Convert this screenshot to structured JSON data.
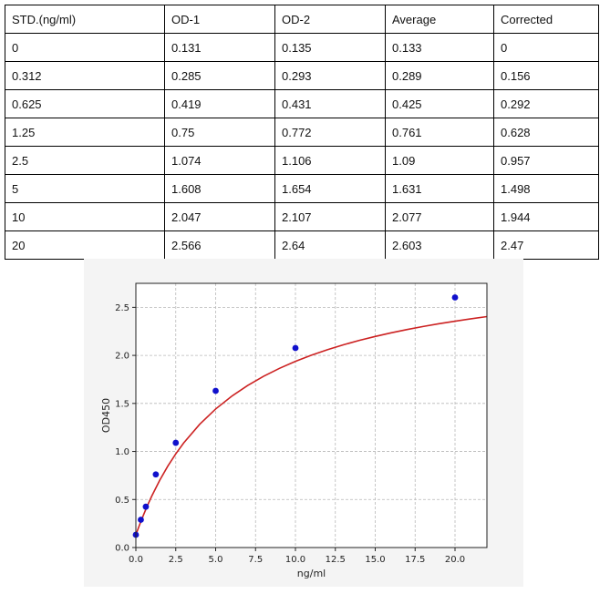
{
  "table": {
    "headers": [
      "STD.(ng/ml)",
      "OD-1",
      "OD-2",
      "Average",
      "Corrected"
    ],
    "rows": [
      [
        "0",
        "0.131",
        "0.135",
        "0.133",
        "0"
      ],
      [
        "0.312",
        "0.285",
        "0.293",
        "0.289",
        "0.156"
      ],
      [
        "0.625",
        "0.419",
        "0.431",
        "0.425",
        "0.292"
      ],
      [
        "1.25",
        "0.75",
        "0.772",
        "0.761",
        "0.628"
      ],
      [
        "2.5",
        "1.074",
        "1.106",
        "1.09",
        "0.957"
      ],
      [
        "5",
        "1.608",
        "1.654",
        "1.631",
        "1.498"
      ],
      [
        "10",
        "2.047",
        "2.107",
        "2.077",
        "1.944"
      ],
      [
        "20",
        "2.566",
        "2.64",
        "2.603",
        "2.47"
      ]
    ]
  },
  "chart_data": {
    "type": "scatter",
    "title": "",
    "xlabel": "ng/ml",
    "ylabel": "OD450",
    "xlim": [
      0,
      22
    ],
    "ylim": [
      0,
      2.75
    ],
    "xticks": [
      0,
      2.5,
      5,
      7.5,
      10,
      12.5,
      15,
      17.5,
      20
    ],
    "xtick_labels": [
      "0.0",
      "2.5",
      "5.0",
      "7.5",
      "10.0",
      "12.5",
      "15.0",
      "17.5",
      "20.0"
    ],
    "yticks": [
      0,
      0.5,
      1,
      1.5,
      2,
      2.5
    ],
    "ytick_labels": [
      "0.0",
      "0.5",
      "1.0",
      "1.5",
      "2.0",
      "2.5"
    ],
    "grid": true,
    "series": [
      {
        "type": "scatter",
        "color": "#1010cc",
        "x": [
          0,
          0.312,
          0.625,
          1.25,
          2.5,
          5,
          10,
          20
        ],
        "y": [
          0.133,
          0.289,
          0.425,
          0.761,
          1.09,
          1.631,
          2.077,
          2.603
        ]
      },
      {
        "type": "line",
        "color": "#cc2222",
        "x": [
          0,
          0.25,
          0.5,
          0.75,
          1,
          1.5,
          2,
          2.5,
          3,
          4,
          5,
          6,
          7,
          8,
          9,
          10,
          11,
          12,
          13,
          14,
          15,
          16,
          17,
          18,
          19,
          20,
          21,
          22
        ],
        "y": [
          0.133,
          0.244,
          0.348,
          0.446,
          0.537,
          0.702,
          0.847,
          0.975,
          1.089,
          1.283,
          1.442,
          1.574,
          1.686,
          1.782,
          1.865,
          1.938,
          2.002,
          2.059,
          2.11,
          2.156,
          2.197,
          2.235,
          2.269,
          2.301,
          2.33,
          2.356,
          2.381,
          2.404
        ]
      }
    ]
  }
}
